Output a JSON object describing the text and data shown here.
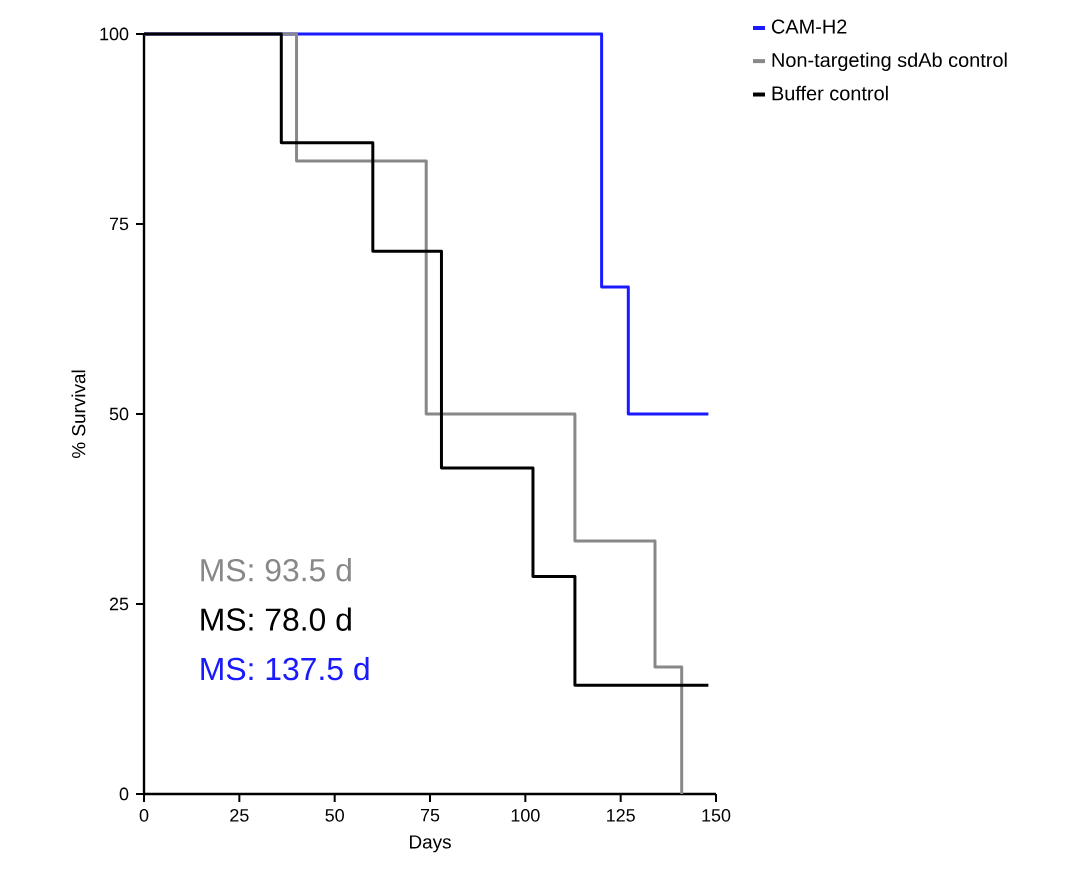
{
  "chart_data": {
    "type": "step",
    "xlabel": "Days",
    "ylabel": "% Survival",
    "xlim": [
      0,
      150
    ],
    "ylim": [
      0,
      100
    ],
    "xticks": [
      0,
      25,
      50,
      75,
      100,
      125,
      150
    ],
    "yticks": [
      0,
      25,
      50,
      75,
      100
    ],
    "grid": false,
    "legend": "top right",
    "marker": "none",
    "line_style": "solid",
    "series": [
      {
        "name": "CAM-H2",
        "color": "#1a1aff",
        "x": [
          0,
          120,
          127,
          148
        ],
        "values": [
          100,
          66.7,
          50,
          50
        ]
      },
      {
        "name": "Non-targeting sdAb control",
        "color": "#888888",
        "x": [
          0,
          40,
          74,
          113,
          134,
          141
        ],
        "values": [
          100,
          83.3,
          50,
          33.3,
          16.7,
          0
        ]
      },
      {
        "name": "Buffer control",
        "color": "#000000",
        "x": [
          0,
          36,
          60,
          78,
          102,
          113,
          148
        ],
        "values": [
          100,
          85.7,
          71.4,
          42.9,
          28.6,
          14.3,
          14.3
        ]
      }
    ],
    "annotations": [
      "MS: 93.5 d",
      "MS: 78.0 d",
      "MS: 137.5 d"
    ]
  }
}
